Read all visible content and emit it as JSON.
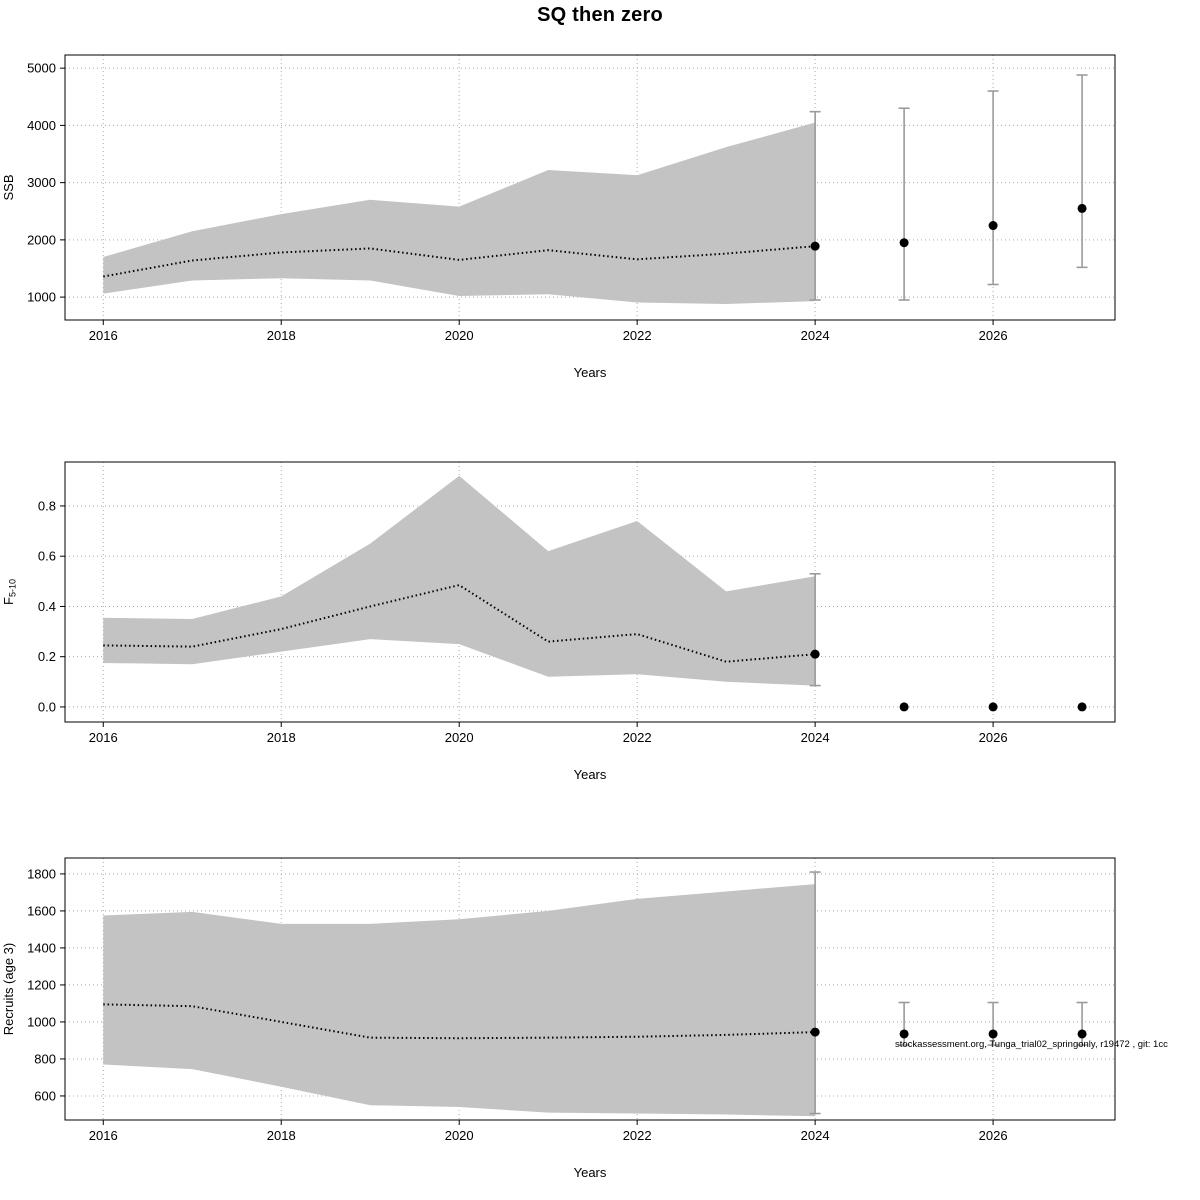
{
  "title": "SQ then zero",
  "watermark": "stockassessment.org, Tunga_trial02_springonly, r19472 , git: 1cc",
  "colors": {
    "band": "#c3c3c3",
    "median": "#000000",
    "point": "#000000",
    "errorbar": "#9b9b9b",
    "grid": "#aaaaaa",
    "axis": "#000000"
  },
  "chart_data": [
    {
      "type": "area",
      "title": "",
      "xlabel": "Years",
      "ylabel": "SSB",
      "xlim": [
        2015.57,
        2027.37
      ],
      "ylim": [
        600,
        5230
      ],
      "grid": true,
      "legend": "none",
      "xticks": [
        2016,
        2018,
        2020,
        2022,
        2024,
        2026
      ],
      "xtick_labels": [
        "2016",
        "2018",
        "2020",
        "2022",
        "2024",
        "2026"
      ],
      "yticks": [
        1000,
        2000,
        3000,
        4000,
        5000
      ],
      "ytick_labels": [
        "1000",
        "2000",
        "3000",
        "4000",
        "5000"
      ],
      "band": {
        "years": [
          2016,
          2017,
          2018,
          2019,
          2020,
          2021,
          2022,
          2023,
          2024
        ],
        "upper": [
          1700,
          2150,
          2450,
          2700,
          2580,
          3220,
          3130,
          3620,
          4050
        ],
        "lower": [
          1060,
          1290,
          1330,
          1290,
          1020,
          1050,
          905,
          880,
          930
        ]
      },
      "median": {
        "years": [
          2016,
          2017,
          2018,
          2019,
          2020,
          2021,
          2022,
          2023,
          2024
        ],
        "values": [
          1360,
          1640,
          1780,
          1850,
          1650,
          1820,
          1660,
          1760,
          1890
        ]
      },
      "points": [
        {
          "year": 2024,
          "value": 1890,
          "lo": 950,
          "hi": 4240
        },
        {
          "year": 2025,
          "value": 1950,
          "lo": 950,
          "hi": 4300
        },
        {
          "year": 2026,
          "value": 2250,
          "lo": 1220,
          "hi": 4600
        },
        {
          "year": 2027,
          "value": 2550,
          "lo": 1520,
          "hi": 4880
        }
      ]
    },
    {
      "type": "area",
      "title": "",
      "xlabel": "Years",
      "ylabel": "F",
      "ylabel_sub": "5-10",
      "xlim": [
        2015.57,
        2027.37
      ],
      "ylim": [
        -0.06,
        0.975
      ],
      "grid": true,
      "legend": "none",
      "xticks": [
        2016,
        2018,
        2020,
        2022,
        2024,
        2026
      ],
      "xtick_labels": [
        "2016",
        "2018",
        "2020",
        "2022",
        "2024",
        "2026"
      ],
      "yticks": [
        0.0,
        0.2,
        0.4,
        0.6,
        0.8
      ],
      "ytick_labels": [
        "0.0",
        "0.2",
        "0.4",
        "0.6",
        "0.8"
      ],
      "band": {
        "years": [
          2016,
          2017,
          2018,
          2019,
          2020,
          2021,
          2022,
          2023,
          2024
        ],
        "upper": [
          0.355,
          0.35,
          0.44,
          0.65,
          0.92,
          0.62,
          0.74,
          0.46,
          0.52
        ],
        "lower": [
          0.175,
          0.17,
          0.22,
          0.27,
          0.25,
          0.12,
          0.13,
          0.1,
          0.085
        ]
      },
      "median": {
        "years": [
          2016,
          2017,
          2018,
          2019,
          2020,
          2021,
          2022,
          2023,
          2024
        ],
        "values": [
          0.245,
          0.24,
          0.31,
          0.4,
          0.485,
          0.26,
          0.29,
          0.18,
          0.21
        ]
      },
      "points": [
        {
          "year": 2024,
          "value": 0.21,
          "lo": 0.085,
          "hi": 0.53
        },
        {
          "year": 2025,
          "value": 0.0
        },
        {
          "year": 2026,
          "value": 0.0
        },
        {
          "year": 2027,
          "value": 0.0
        }
      ]
    },
    {
      "type": "area",
      "title": "",
      "xlabel": "Years",
      "ylabel": "Recruits (age 3)",
      "xlim": [
        2015.57,
        2027.37
      ],
      "ylim": [
        470,
        1886
      ],
      "grid": true,
      "legend": "none",
      "xticks": [
        2016,
        2018,
        2020,
        2022,
        2024,
        2026
      ],
      "xtick_labels": [
        "2016",
        "2018",
        "2020",
        "2022",
        "2024",
        "2026"
      ],
      "yticks": [
        600,
        800,
        1000,
        1200,
        1400,
        1600,
        1800
      ],
      "ytick_labels": [
        "600",
        "800",
        "1000",
        "1200",
        "1400",
        "1600",
        "1800"
      ],
      "band": {
        "years": [
          2016,
          2017,
          2018,
          2019,
          2020,
          2021,
          2022,
          2023,
          2024
        ],
        "upper": [
          1575,
          1595,
          1530,
          1530,
          1555,
          1600,
          1665,
          1705,
          1745
        ],
        "lower": [
          770,
          745,
          650,
          550,
          540,
          510,
          505,
          500,
          490
        ]
      },
      "median": {
        "years": [
          2016,
          2017,
          2018,
          2019,
          2020,
          2021,
          2022,
          2023,
          2024
        ],
        "values": [
          1095,
          1085,
          1000,
          915,
          912,
          915,
          920,
          930,
          945
        ]
      },
      "points": [
        {
          "year": 2024,
          "value": 945,
          "lo": 505,
          "hi": 1810
        },
        {
          "year": 2025,
          "value": 935,
          "lo": 875,
          "hi": 1105
        },
        {
          "year": 2026,
          "value": 935,
          "lo": 875,
          "hi": 1105
        },
        {
          "year": 2027,
          "value": 935,
          "lo": 875,
          "hi": 1105
        }
      ]
    }
  ]
}
